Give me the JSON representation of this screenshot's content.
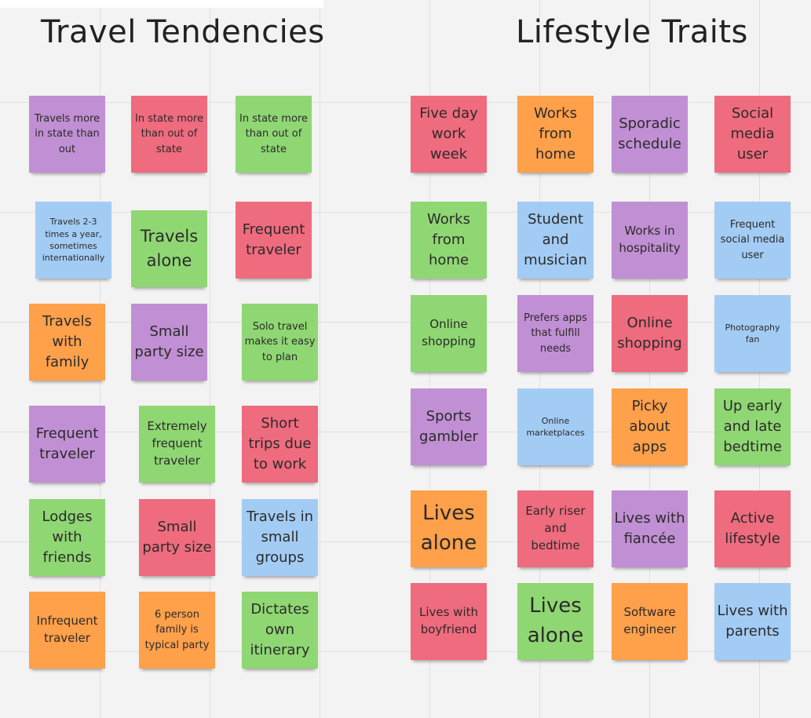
{
  "board": {
    "colors": {
      "purple": "#c18fd3",
      "red": "#ef6b7e",
      "green": "#8fd773",
      "blue": "#a3ccf4",
      "orange": "#ffa04a"
    },
    "panels": [
      {
        "title": "Travel Tendencies",
        "notes": [
          {
            "text": "Travels more in state than out",
            "color": "purple"
          },
          {
            "text": "In state more than out of state",
            "color": "red"
          },
          {
            "text": "In state more than out of state",
            "color": "green"
          },
          {
            "text": "Travels 2-3 times a year, sometimes internationally",
            "color": "blue"
          },
          {
            "text": "Travels alone",
            "color": "green"
          },
          {
            "text": "Frequent traveler",
            "color": "red"
          },
          {
            "text": "Travels with family",
            "color": "orange"
          },
          {
            "text": "Small party size",
            "color": "purple"
          },
          {
            "text": "Solo travel makes it easy to plan",
            "color": "green"
          },
          {
            "text": "Frequent traveler",
            "color": "purple"
          },
          {
            "text": "Extremely frequent traveler",
            "color": "green"
          },
          {
            "text": "Short trips due to work",
            "color": "red"
          },
          {
            "text": "Lodges with friends",
            "color": "green"
          },
          {
            "text": "Small party size",
            "color": "red"
          },
          {
            "text": "Travels in small groups",
            "color": "blue"
          },
          {
            "text": "Infrequent traveler",
            "color": "orange"
          },
          {
            "text": "6 person family is typical party",
            "color": "orange"
          },
          {
            "text": "Dictates own itinerary",
            "color": "green"
          }
        ]
      },
      {
        "title": "Lifestyle Traits",
        "notes": [
          {
            "text": "Five day work week",
            "color": "red"
          },
          {
            "text": "Works from home",
            "color": "orange"
          },
          {
            "text": "Sporadic schedule",
            "color": "purple"
          },
          {
            "text": "Social media user",
            "color": "red"
          },
          {
            "text": "Works from home",
            "color": "green"
          },
          {
            "text": "Student and musician",
            "color": "blue"
          },
          {
            "text": "Works in hospitality",
            "color": "purple"
          },
          {
            "text": "Frequent social media user",
            "color": "blue"
          },
          {
            "text": "Online shopping",
            "color": "green"
          },
          {
            "text": "Prefers apps that fulfill needs",
            "color": "purple"
          },
          {
            "text": "Online shopping",
            "color": "red"
          },
          {
            "text": "Photography fan",
            "color": "blue"
          },
          {
            "text": "Sports gambler",
            "color": "purple"
          },
          {
            "text": "Online marketplaces",
            "color": "blue"
          },
          {
            "text": "Picky about apps",
            "color": "orange"
          },
          {
            "text": "Up early and late bedtime",
            "color": "green"
          },
          {
            "text": "Lives alone",
            "color": "orange"
          },
          {
            "text": "Early riser and bedtime",
            "color": "red"
          },
          {
            "text": "Lives with fiancée",
            "color": "purple"
          },
          {
            "text": "Active lifestyle",
            "color": "red"
          },
          {
            "text": "Lives with boyfriend",
            "color": "red"
          },
          {
            "text": "Lives alone",
            "color": "green"
          },
          {
            "text": "Software engineer",
            "color": "orange"
          },
          {
            "text": "Lives with parents",
            "color": "blue"
          }
        ]
      }
    ]
  }
}
